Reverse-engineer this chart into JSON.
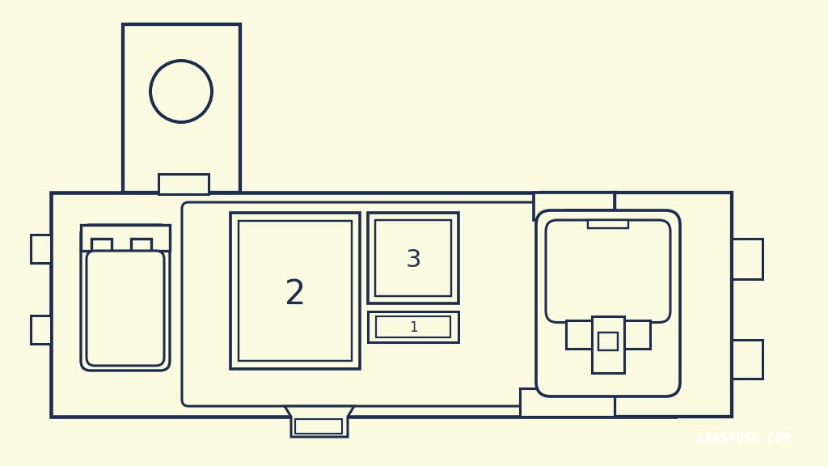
{
  "background_color": "#FAFAE0",
  "line_color": "#1E2D4E",
  "line_width": 2.2,
  "fig_width": 10.24,
  "fig_height": 5.76,
  "watermark_text": "CARSFUSE.COM",
  "watermark_bg": "#111111",
  "watermark_text_color": "#ffffff",
  "label_2": "2",
  "label_3": "3",
  "label_1": "1"
}
